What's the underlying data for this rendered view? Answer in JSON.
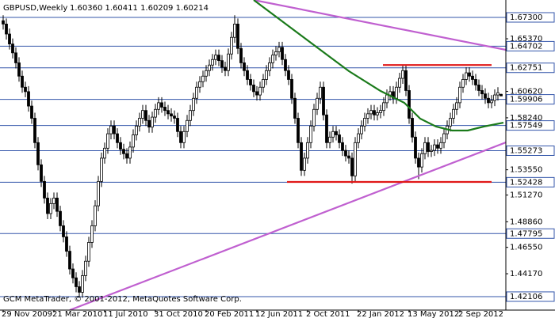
{
  "chart_data": {
    "type": "candlestick",
    "title": "GBPUSD,Weekly",
    "subtitle": "1.60360 1.60411 1.60209 1.60214",
    "footer": "GCM MetaTrader, © 2001-2012, MetaQuotes Software Corp.",
    "bull_color": "#ffffff",
    "bear_color": "#000000",
    "level_color": "#3355aa",
    "xlim": [
      -1,
      158.5
    ],
    "ylim": [
      1.4089,
      1.6887
    ],
    "xticks": [
      {
        "value": 0,
        "label": "29 Nov 2009"
      },
      {
        "value": 16,
        "label": "21 Mar 2010"
      },
      {
        "value": 32,
        "label": "11 Jul 2010"
      },
      {
        "value": 48,
        "label": "31 Oct 2010"
      },
      {
        "value": 64,
        "label": "20 Feb 2011"
      },
      {
        "value": 80,
        "label": "12 Jun 2011"
      },
      {
        "value": 96,
        "label": "2 Oct 2011"
      },
      {
        "value": 112,
        "label": "22 Jan 2012"
      },
      {
        "value": 128,
        "label": "13 May 2012"
      },
      {
        "value": 144,
        "label": "2 Sep 2012"
      }
    ],
    "yticks": [
      {
        "value": 1.6537,
        "label": "1.65370"
      },
      {
        "value": 1.6062,
        "label": "1.60620"
      },
      {
        "value": 1.5824,
        "label": "1.58240"
      },
      {
        "value": 1.5355,
        "label": "1.53550"
      },
      {
        "value": 1.5127,
        "label": "1.51270"
      },
      {
        "value": 1.4886,
        "label": "1.48860"
      },
      {
        "value": 1.4655,
        "label": "1.46550"
      },
      {
        "value": 1.4417,
        "label": "1.44170"
      }
    ],
    "levels": [
      {
        "value": 1.673,
        "label": "1.67300"
      },
      {
        "value": 1.64702,
        "label": "1.64702"
      },
      {
        "value": 1.62751,
        "label": "1.62751"
      },
      {
        "value": 1.59906,
        "label": "1.59906"
      },
      {
        "value": 1.57549,
        "label": "1.57549"
      },
      {
        "value": 1.55273,
        "label": "1.55273"
      },
      {
        "value": 1.52428,
        "label": "1.52428"
      },
      {
        "value": 1.47795,
        "label": "1.47795"
      },
      {
        "value": 1.42106,
        "label": "1.42106"
      }
    ],
    "overlays": [
      {
        "color": "#c060d0",
        "points": [
          [
            79,
            1.6887
          ],
          [
            158.5,
            1.6437
          ]
        ]
      },
      {
        "color": "#c060d0",
        "points": [
          [
            21,
            1.4089
          ],
          [
            158.5,
            1.5602
          ]
        ]
      },
      {
        "color": "#e01818",
        "points": [
          [
            119.75,
            1.63
          ],
          [
            154,
            1.63
          ]
        ]
      },
      {
        "color": "#e01818",
        "points": [
          [
            89.5,
            1.5245
          ],
          [
            154,
            1.5245
          ]
        ]
      },
      {
        "color": "#1a7a1a",
        "points": [
          [
            79,
            1.6887
          ],
          [
            89,
            1.6673
          ],
          [
            99,
            1.6459
          ],
          [
            109,
            1.6245
          ],
          [
            119,
            1.6066
          ],
          [
            126.5,
            1.5959
          ],
          [
            131.5,
            1.5816
          ],
          [
            136.5,
            1.5745
          ],
          [
            141.5,
            1.5709
          ],
          [
            146.5,
            1.5709
          ],
          [
            151.5,
            1.5745
          ],
          [
            157.75,
            1.578
          ]
        ]
      }
    ],
    "ohlc": [
      [
        1.67,
        1.675,
        1.662,
        1.667
      ],
      [
        1.667,
        1.672,
        1.653,
        1.658
      ],
      [
        1.658,
        1.663,
        1.644,
        1.649
      ],
      [
        1.649,
        1.654,
        1.636,
        1.641
      ],
      [
        1.641,
        1.646,
        1.627,
        1.632
      ],
      [
        1.632,
        1.637,
        1.615,
        1.62
      ],
      [
        1.62,
        1.625,
        1.605,
        1.61
      ],
      [
        1.61,
        1.615,
        1.601,
        1.606
      ],
      [
        1.606,
        1.611,
        1.588,
        1.593
      ],
      [
        1.593,
        1.598,
        1.577,
        1.582
      ],
      [
        1.582,
        1.587,
        1.555,
        1.56
      ],
      [
        1.56,
        1.565,
        1.535,
        1.54
      ],
      [
        1.54,
        1.545,
        1.52,
        1.525
      ],
      [
        1.525,
        1.53,
        1.505,
        1.51
      ],
      [
        1.51,
        1.515,
        1.491,
        1.496
      ],
      [
        1.496,
        1.51,
        1.491,
        1.505
      ],
      [
        1.505,
        1.515,
        1.5,
        1.51
      ],
      [
        1.51,
        1.515,
        1.493,
        1.498
      ],
      [
        1.498,
        1.503,
        1.48,
        1.485
      ],
      [
        1.485,
        1.49,
        1.47,
        1.475
      ],
      [
        1.475,
        1.48,
        1.457,
        1.462
      ],
      [
        1.462,
        1.467,
        1.441,
        1.446
      ],
      [
        1.446,
        1.451,
        1.433,
        1.438
      ],
      [
        1.438,
        1.443,
        1.425,
        1.43
      ],
      [
        1.43,
        1.435,
        1.42,
        1.425
      ],
      [
        1.425,
        1.445,
        1.42,
        1.44
      ],
      [
        1.44,
        1.458,
        1.435,
        1.453
      ],
      [
        1.453,
        1.475,
        1.448,
        1.47
      ],
      [
        1.47,
        1.49,
        1.465,
        1.485
      ],
      [
        1.485,
        1.508,
        1.48,
        1.503
      ],
      [
        1.503,
        1.53,
        1.498,
        1.525
      ],
      [
        1.525,
        1.551,
        1.52,
        1.546
      ],
      [
        1.546,
        1.56,
        1.541,
        1.555
      ],
      [
        1.555,
        1.573,
        1.55,
        1.568
      ],
      [
        1.568,
        1.58,
        1.563,
        1.575
      ],
      [
        1.575,
        1.58,
        1.563,
        1.568
      ],
      [
        1.568,
        1.573,
        1.555,
        1.56
      ],
      [
        1.56,
        1.565,
        1.549,
        1.554
      ],
      [
        1.554,
        1.559,
        1.545,
        1.55
      ],
      [
        1.55,
        1.555,
        1.541,
        1.546
      ],
      [
        1.546,
        1.561,
        1.541,
        1.556
      ],
      [
        1.556,
        1.572,
        1.551,
        1.567
      ],
      [
        1.567,
        1.58,
        1.562,
        1.575
      ],
      [
        1.575,
        1.587,
        1.57,
        1.582
      ],
      [
        1.582,
        1.594,
        1.577,
        1.589
      ],
      [
        1.589,
        1.594,
        1.575,
        1.58
      ],
      [
        1.58,
        1.585,
        1.569,
        1.574
      ],
      [
        1.574,
        1.588,
        1.569,
        1.583
      ],
      [
        1.583,
        1.595,
        1.578,
        1.59
      ],
      [
        1.59,
        1.601,
        1.585,
        1.596
      ],
      [
        1.596,
        1.601,
        1.587,
        1.592
      ],
      [
        1.592,
        1.597,
        1.584,
        1.589
      ],
      [
        1.589,
        1.594,
        1.581,
        1.586
      ],
      [
        1.586,
        1.591,
        1.579,
        1.584
      ],
      [
        1.584,
        1.589,
        1.577,
        1.582
      ],
      [
        1.582,
        1.587,
        1.565,
        1.57
      ],
      [
        1.57,
        1.575,
        1.555,
        1.56
      ],
      [
        1.56,
        1.575,
        1.555,
        1.57
      ],
      [
        1.57,
        1.585,
        1.565,
        1.58
      ],
      [
        1.58,
        1.594,
        1.575,
        1.589
      ],
      [
        1.589,
        1.605,
        1.584,
        1.6
      ],
      [
        1.6,
        1.615,
        1.595,
        1.61
      ],
      [
        1.61,
        1.62,
        1.605,
        1.615
      ],
      [
        1.615,
        1.625,
        1.61,
        1.62
      ],
      [
        1.62,
        1.63,
        1.615,
        1.625
      ],
      [
        1.625,
        1.635,
        1.62,
        1.63
      ],
      [
        1.63,
        1.64,
        1.625,
        1.635
      ],
      [
        1.635,
        1.644,
        1.63,
        1.639
      ],
      [
        1.639,
        1.644,
        1.629,
        1.634
      ],
      [
        1.634,
        1.639,
        1.623,
        1.628
      ],
      [
        1.628,
        1.633,
        1.62,
        1.625
      ],
      [
        1.625,
        1.645,
        1.62,
        1.64
      ],
      [
        1.64,
        1.66,
        1.635,
        1.655
      ],
      [
        1.655,
        1.675,
        1.65,
        1.667
      ],
      [
        1.667,
        1.672,
        1.64,
        1.645
      ],
      [
        1.645,
        1.65,
        1.627,
        1.632
      ],
      [
        1.632,
        1.637,
        1.62,
        1.625
      ],
      [
        1.625,
        1.63,
        1.612,
        1.617
      ],
      [
        1.617,
        1.622,
        1.607,
        1.612
      ],
      [
        1.612,
        1.617,
        1.601,
        1.606
      ],
      [
        1.606,
        1.611,
        1.598,
        1.603
      ],
      [
        1.603,
        1.615,
        1.598,
        1.61
      ],
      [
        1.61,
        1.622,
        1.605,
        1.617
      ],
      [
        1.617,
        1.63,
        1.612,
        1.625
      ],
      [
        1.625,
        1.637,
        1.62,
        1.632
      ],
      [
        1.632,
        1.644,
        1.627,
        1.639
      ],
      [
        1.639,
        1.647,
        1.634,
        1.642
      ],
      [
        1.642,
        1.651,
        1.637,
        1.646
      ],
      [
        1.646,
        1.651,
        1.63,
        1.635
      ],
      [
        1.635,
        1.64,
        1.62,
        1.625
      ],
      [
        1.625,
        1.63,
        1.612,
        1.617
      ],
      [
        1.617,
        1.622,
        1.595,
        1.6
      ],
      [
        1.6,
        1.605,
        1.577,
        1.582
      ],
      [
        1.582,
        1.587,
        1.555,
        1.56
      ],
      [
        1.56,
        1.565,
        1.53,
        1.535
      ],
      [
        1.535,
        1.551,
        1.53,
        1.546
      ],
      [
        1.546,
        1.565,
        1.541,
        1.56
      ],
      [
        1.56,
        1.58,
        1.555,
        1.575
      ],
      [
        1.575,
        1.595,
        1.57,
        1.59
      ],
      [
        1.59,
        1.605,
        1.585,
        1.6
      ],
      [
        1.6,
        1.615,
        1.595,
        1.61
      ],
      [
        1.61,
        1.615,
        1.58,
        1.585
      ],
      [
        1.585,
        1.59,
        1.555,
        1.56
      ],
      [
        1.56,
        1.57,
        1.555,
        1.565
      ],
      [
        1.565,
        1.575,
        1.56,
        1.57
      ],
      [
        1.57,
        1.575,
        1.562,
        1.567
      ],
      [
        1.567,
        1.572,
        1.555,
        1.56
      ],
      [
        1.56,
        1.565,
        1.548,
        1.553
      ],
      [
        1.553,
        1.558,
        1.543,
        1.548
      ],
      [
        1.548,
        1.553,
        1.541,
        1.546
      ],
      [
        1.546,
        1.551,
        1.523,
        1.53
      ],
      [
        1.53,
        1.565,
        1.525,
        1.56
      ],
      [
        1.56,
        1.573,
        1.555,
        1.568
      ],
      [
        1.568,
        1.58,
        1.563,
        1.575
      ],
      [
        1.575,
        1.587,
        1.57,
        1.582
      ],
      [
        1.582,
        1.591,
        1.577,
        1.586
      ],
      [
        1.586,
        1.594,
        1.581,
        1.589
      ],
      [
        1.589,
        1.594,
        1.58,
        1.585
      ],
      [
        1.585,
        1.592,
        1.58,
        1.587
      ],
      [
        1.587,
        1.594,
        1.582,
        1.589
      ],
      [
        1.589,
        1.601,
        1.584,
        1.596
      ],
      [
        1.596,
        1.608,
        1.591,
        1.603
      ],
      [
        1.603,
        1.611,
        1.598,
        1.606
      ],
      [
        1.606,
        1.611,
        1.595,
        1.6
      ],
      [
        1.6,
        1.615,
        1.595,
        1.61
      ],
      [
        1.61,
        1.623,
        1.605,
        1.618
      ],
      [
        1.618,
        1.63,
        1.613,
        1.625
      ],
      [
        1.625,
        1.63,
        1.602,
        1.607
      ],
      [
        1.607,
        1.612,
        1.577,
        1.582
      ],
      [
        1.582,
        1.587,
        1.56,
        1.565
      ],
      [
        1.565,
        1.57,
        1.541,
        1.546
      ],
      [
        1.546,
        1.551,
        1.527,
        1.538
      ],
      [
        1.538,
        1.555,
        1.533,
        1.55
      ],
      [
        1.55,
        1.565,
        1.545,
        1.56
      ],
      [
        1.56,
        1.565,
        1.547,
        1.552
      ],
      [
        1.552,
        1.558,
        1.547,
        1.553
      ],
      [
        1.553,
        1.563,
        1.548,
        1.558
      ],
      [
        1.558,
        1.563,
        1.55,
        1.555
      ],
      [
        1.555,
        1.565,
        1.55,
        1.56
      ],
      [
        1.56,
        1.573,
        1.555,
        1.568
      ],
      [
        1.568,
        1.58,
        1.563,
        1.575
      ],
      [
        1.575,
        1.587,
        1.57,
        1.582
      ],
      [
        1.582,
        1.595,
        1.577,
        1.59
      ],
      [
        1.59,
        1.601,
        1.585,
        1.596
      ],
      [
        1.596,
        1.615,
        1.591,
        1.61
      ],
      [
        1.61,
        1.622,
        1.605,
        1.617
      ],
      [
        1.617,
        1.628,
        1.612,
        1.623
      ],
      [
        1.623,
        1.628,
        1.615,
        1.62
      ],
      [
        1.62,
        1.625,
        1.612,
        1.617
      ],
      [
        1.617,
        1.622,
        1.607,
        1.612
      ],
      [
        1.612,
        1.617,
        1.602,
        1.607
      ],
      [
        1.607,
        1.612,
        1.599,
        1.604
      ],
      [
        1.604,
        1.609,
        1.595,
        1.6
      ],
      [
        1.6,
        1.605,
        1.591,
        1.596
      ],
      [
        1.596,
        1.603,
        1.591,
        1.598
      ],
      [
        1.598,
        1.608,
        1.593,
        1.603
      ],
      [
        1.603,
        1.61,
        1.598,
        1.605
      ],
      [
        1.6036,
        1.60411,
        1.60209,
        1.60214
      ]
    ]
  }
}
